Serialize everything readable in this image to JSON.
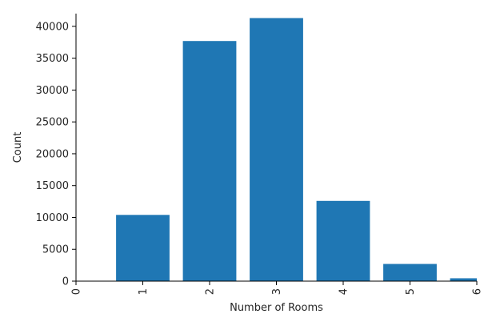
{
  "chart_data": {
    "type": "bar",
    "title": "",
    "xlabel": "Number of Rooms",
    "ylabel": "Count",
    "bar_color": "#1f77b4",
    "bar_width": 0.8,
    "x_range": [
      0,
      6
    ],
    "ylim": [
      0,
      42000
    ],
    "x_ticks": [
      0,
      1,
      2,
      3,
      4,
      5,
      6
    ],
    "x_tick_labels": [
      "0",
      "1",
      "2",
      "3",
      "4",
      "5",
      "6"
    ],
    "x_tick_rotation": "vertical",
    "y_ticks": [
      0,
      5000,
      10000,
      15000,
      20000,
      25000,
      30000,
      35000,
      40000
    ],
    "y_tick_labels": [
      "0",
      "5000",
      "10000",
      "15000",
      "20000",
      "25000",
      "30000",
      "35000",
      "40000"
    ],
    "grid": false,
    "legend": "none",
    "categories": [
      1,
      2,
      3,
      4,
      5,
      6
    ],
    "values": [
      10400,
      37700,
      41300,
      12600,
      2700,
      450
    ]
  }
}
